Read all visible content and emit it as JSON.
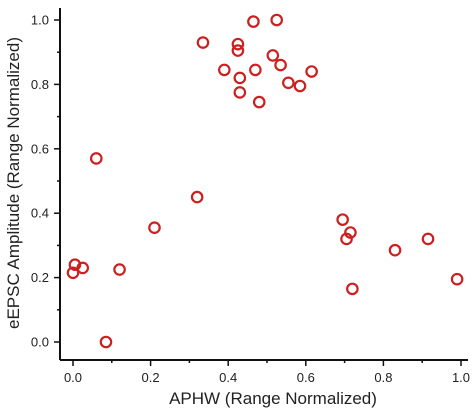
{
  "chart_data": {
    "type": "scatter",
    "title": "",
    "xlabel": "APHW (Range Normalized)",
    "ylabel": "eEPSC Amplitude (Range Normalized)",
    "xlim": [
      0.0,
      1.0
    ],
    "ylim": [
      0.0,
      1.0
    ],
    "xticks": [
      "0.0",
      "0.2",
      "0.4",
      "0.6",
      "0.8",
      "1.0"
    ],
    "yticks": [
      "0.0",
      "0.2",
      "0.4",
      "0.6",
      "0.8",
      "1.0"
    ],
    "grid": false,
    "legend": "none",
    "marker": "open-circle",
    "series": [
      {
        "color": "#cc2020",
        "points": [
          [
            0.465,
            0.995
          ],
          [
            0.525,
            1.0
          ],
          [
            0.335,
            0.93
          ],
          [
            0.425,
            0.925
          ],
          [
            0.425,
            0.905
          ],
          [
            0.515,
            0.89
          ],
          [
            0.535,
            0.86
          ],
          [
            0.39,
            0.845
          ],
          [
            0.47,
            0.845
          ],
          [
            0.615,
            0.84
          ],
          [
            0.43,
            0.82
          ],
          [
            0.555,
            0.805
          ],
          [
            0.585,
            0.795
          ],
          [
            0.43,
            0.775
          ],
          [
            0.48,
            0.745
          ],
          [
            0.06,
            0.57
          ],
          [
            0.32,
            0.45
          ],
          [
            0.21,
            0.355
          ],
          [
            0.695,
            0.38
          ],
          [
            0.715,
            0.34
          ],
          [
            0.705,
            0.32
          ],
          [
            0.915,
            0.32
          ],
          [
            0.83,
            0.285
          ],
          [
            0.005,
            0.24
          ],
          [
            0.025,
            0.23
          ],
          [
            0.0,
            0.215
          ],
          [
            0.12,
            0.225
          ],
          [
            0.99,
            0.195
          ],
          [
            0.72,
            0.165
          ],
          [
            0.085,
            0.0
          ]
        ]
      }
    ]
  }
}
